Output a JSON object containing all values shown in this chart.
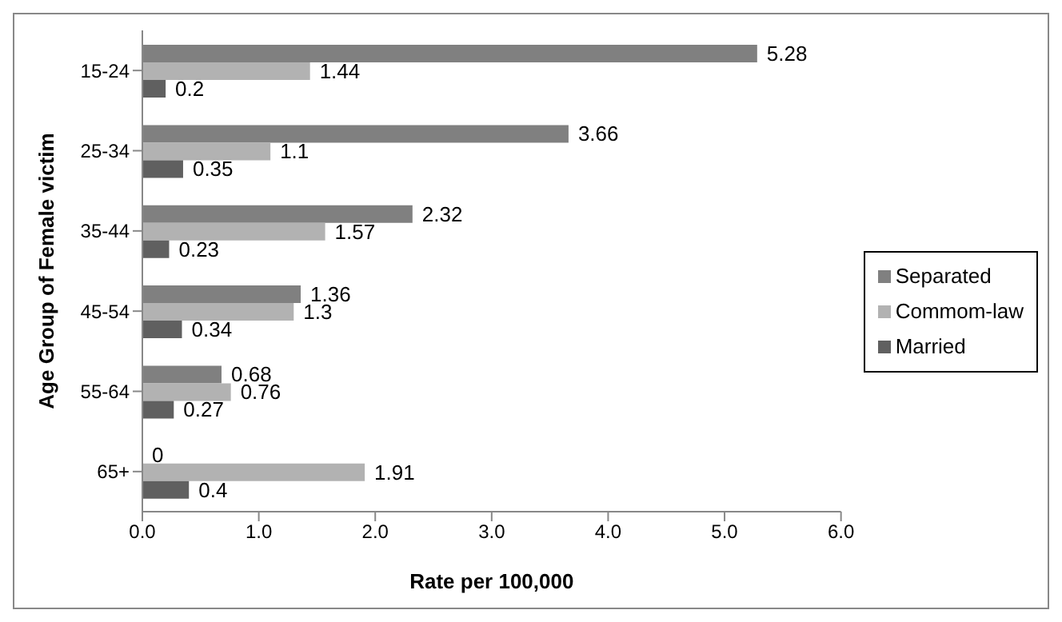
{
  "chart_data": {
    "type": "bar",
    "orientation": "horizontal",
    "xlabel": "Rate per 100,000",
    "ylabel": "Age Group of Female victim",
    "categories": [
      "15-24",
      "25-34",
      "35-44",
      "45-54",
      "55-64",
      "65+"
    ],
    "series": [
      {
        "name": "Separated",
        "color": "#808080",
        "values": [
          5.28,
          3.66,
          2.32,
          1.36,
          0.68,
          0
        ]
      },
      {
        "name": "Commom-law",
        "color": "#b2b2b2",
        "values": [
          1.44,
          1.1,
          1.57,
          1.3,
          0.76,
          1.91
        ]
      },
      {
        "name": "Married",
        "color": "#606060",
        "values": [
          0.2,
          0.35,
          0.23,
          0.34,
          0.27,
          0.4
        ]
      }
    ],
    "xlim": [
      0,
      6
    ],
    "xticks": [
      {
        "value": 0,
        "label": "0.0"
      },
      {
        "value": 1,
        "label": "1.0"
      },
      {
        "value": 2,
        "label": "2.0"
      },
      {
        "value": 3,
        "label": "3.0"
      },
      {
        "value": 4,
        "label": "4.0"
      },
      {
        "value": 5,
        "label": "5.0"
      },
      {
        "value": 6,
        "label": "6.0"
      }
    ],
    "data_labels": true,
    "grid": false,
    "legend": "right"
  }
}
